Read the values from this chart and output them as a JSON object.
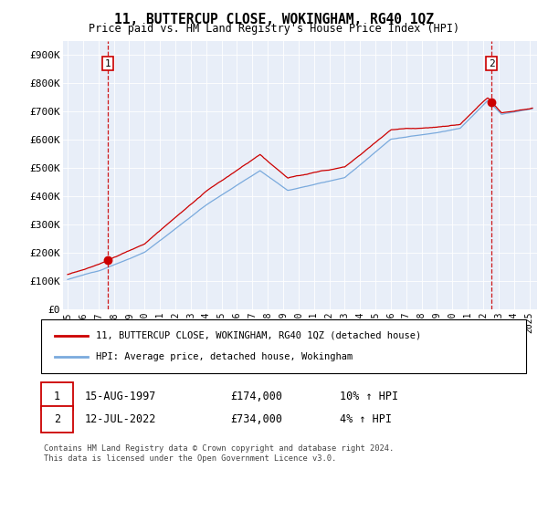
{
  "title": "11, BUTTERCUP CLOSE, WOKINGHAM, RG40 1QZ",
  "subtitle": "Price paid vs. HM Land Registry's House Price Index (HPI)",
  "background_color": "#e8eef8",
  "plot_background": "#e8eef8",
  "legend_label_red": "11, BUTTERCUP CLOSE, WOKINGHAM, RG40 1QZ (detached house)",
  "legend_label_blue": "HPI: Average price, detached house, Wokingham",
  "transaction1_date": "15-AUG-1997",
  "transaction1_price": "£174,000",
  "transaction1_hpi": "10% ↑ HPI",
  "transaction2_date": "12-JUL-2022",
  "transaction2_price": "£734,000",
  "transaction2_hpi": "4% ↑ HPI",
  "footer": "Contains HM Land Registry data © Crown copyright and database right 2024.\nThis data is licensed under the Open Government Licence v3.0.",
  "ylim": [
    0,
    950000
  ],
  "yticks": [
    0,
    100000,
    200000,
    300000,
    400000,
    500000,
    600000,
    700000,
    800000,
    900000
  ],
  "ytick_labels": [
    "£0",
    "£100K",
    "£200K",
    "£300K",
    "£400K",
    "£500K",
    "£600K",
    "£700K",
    "£800K",
    "£900K"
  ],
  "xtick_years": [
    1995,
    1996,
    1997,
    1998,
    1999,
    2000,
    2001,
    2002,
    2003,
    2004,
    2005,
    2006,
    2007,
    2008,
    2009,
    2010,
    2011,
    2012,
    2013,
    2014,
    2015,
    2016,
    2017,
    2018,
    2019,
    2020,
    2021,
    2022,
    2023,
    2024,
    2025
  ],
  "transaction1_x": 1997.62,
  "transaction1_y": 174000,
  "transaction2_x": 2022.54,
  "transaction2_y": 734000,
  "red_line_color": "#cc0000",
  "blue_line_color": "#7aaadd",
  "dot_color": "#cc0000",
  "xlim_left": 1994.7,
  "xlim_right": 2025.5
}
